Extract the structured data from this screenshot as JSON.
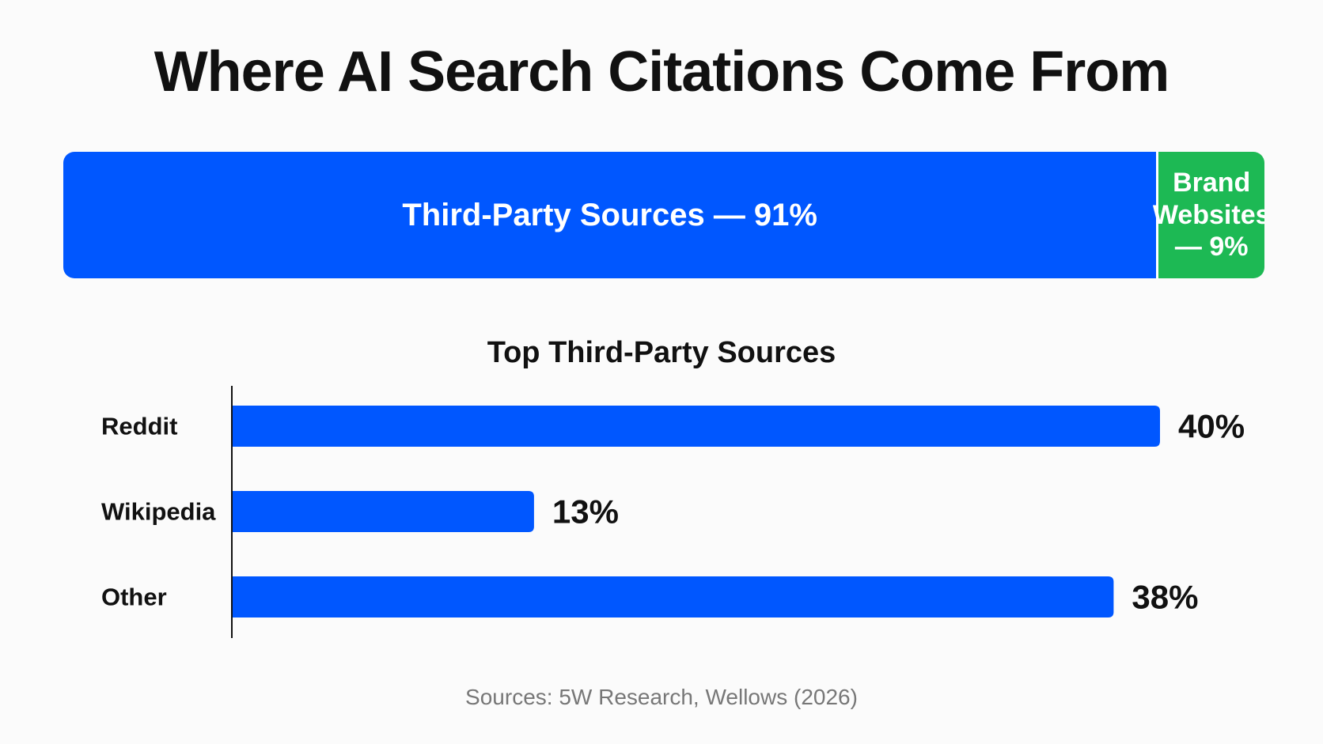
{
  "title": "Where AI Search Citations Come From",
  "split": {
    "segments": [
      {
        "label": "Third-Party Sources — 91%",
        "value": 91,
        "color": "#0057ff"
      },
      {
        "label": "Brand Websites — 9%",
        "value": 9,
        "color": "#1db954"
      }
    ]
  },
  "subtitle": "Top Third-Party Sources",
  "source_note": "Sources: 5W Research, Wellows (2026)",
  "colors": {
    "bar": "#0057ff",
    "axis": "#111111",
    "label": "#111111"
  },
  "chart_data": [
    {
      "type": "bar",
      "orientation": "stacked-horizontal",
      "categories": [
        "Third-Party Sources",
        "Brand Websites"
      ],
      "values": [
        91,
        9
      ],
      "unit": "%",
      "title": "Where AI Search Citations Come From"
    },
    {
      "type": "bar",
      "orientation": "horizontal",
      "title": "Top Third-Party Sources",
      "categories": [
        "Reddit",
        "Wikipedia",
        "Other"
      ],
      "values": [
        40,
        13,
        38
      ],
      "value_labels": [
        "40%",
        "13%",
        "38%"
      ],
      "unit": "%",
      "xlim": [
        0,
        40
      ],
      "grid": false
    }
  ]
}
